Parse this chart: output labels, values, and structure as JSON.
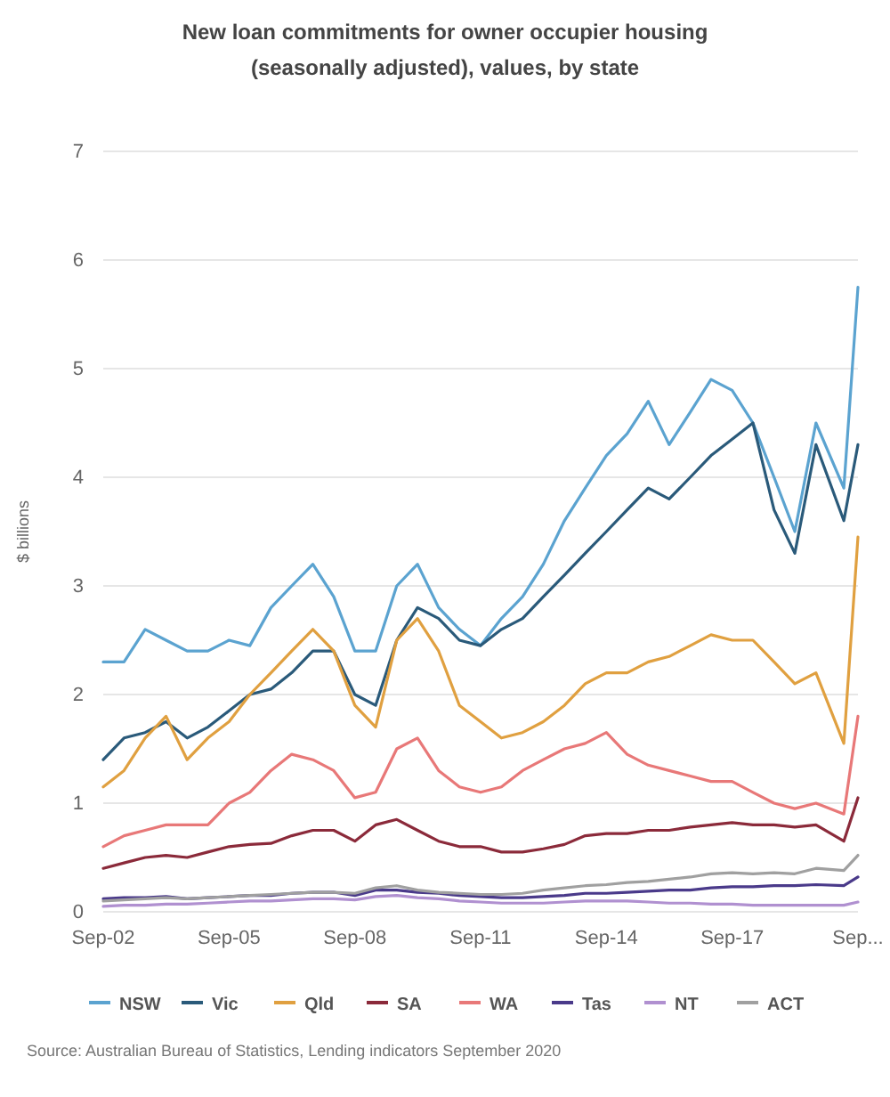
{
  "chart_data": {
    "type": "line",
    "title": "New loan commitments for owner occupier housing (seasonally adjusted), values, by state",
    "ylabel": "$ billions",
    "x": [
      "2002-09",
      "2003-03",
      "2003-09",
      "2004-03",
      "2004-09",
      "2005-03",
      "2005-09",
      "2006-03",
      "2006-09",
      "2007-03",
      "2007-09",
      "2008-03",
      "2008-09",
      "2009-03",
      "2009-09",
      "2010-03",
      "2010-09",
      "2011-03",
      "2011-09",
      "2012-03",
      "2012-09",
      "2013-03",
      "2013-09",
      "2014-03",
      "2014-09",
      "2015-03",
      "2015-09",
      "2016-03",
      "2016-09",
      "2017-03",
      "2017-09",
      "2018-03",
      "2018-09",
      "2019-03",
      "2019-09",
      "2020-05",
      "2020-09"
    ],
    "series": [
      {
        "name": "NSW",
        "color": "#5ba3d0",
        "values": [
          2.3,
          2.3,
          2.6,
          2.5,
          2.4,
          2.4,
          2.5,
          2.45,
          2.8,
          3.0,
          3.2,
          2.9,
          2.4,
          2.4,
          3.0,
          3.2,
          2.8,
          2.6,
          2.45,
          2.7,
          2.9,
          3.2,
          3.6,
          3.9,
          4.2,
          4.4,
          4.7,
          4.3,
          4.6,
          4.9,
          4.8,
          4.5,
          4.0,
          3.5,
          4.5,
          3.9,
          5.75
        ]
      },
      {
        "name": "Vic",
        "color": "#2a5a7a",
        "values": [
          1.4,
          1.6,
          1.65,
          1.75,
          1.6,
          1.7,
          1.85,
          2.0,
          2.05,
          2.2,
          2.4,
          2.4,
          2.0,
          1.9,
          2.5,
          2.8,
          2.7,
          2.5,
          2.45,
          2.6,
          2.7,
          2.9,
          3.1,
          3.3,
          3.5,
          3.7,
          3.9,
          3.8,
          4.0,
          4.2,
          4.35,
          4.5,
          3.7,
          3.3,
          4.3,
          3.6,
          4.3
        ]
      },
      {
        "name": "Qld",
        "color": "#e0a040",
        "values": [
          1.15,
          1.3,
          1.6,
          1.8,
          1.4,
          1.6,
          1.75,
          2.0,
          2.2,
          2.4,
          2.6,
          2.4,
          1.9,
          1.7,
          2.5,
          2.7,
          2.4,
          1.9,
          1.75,
          1.6,
          1.65,
          1.75,
          1.9,
          2.1,
          2.2,
          2.2,
          2.3,
          2.35,
          2.45,
          2.55,
          2.5,
          2.5,
          2.3,
          2.1,
          2.2,
          1.55,
          3.45
        ]
      },
      {
        "name": "SA",
        "color": "#8b2a3a",
        "values": [
          0.4,
          0.45,
          0.5,
          0.52,
          0.5,
          0.55,
          0.6,
          0.62,
          0.63,
          0.7,
          0.75,
          0.75,
          0.65,
          0.8,
          0.85,
          0.75,
          0.65,
          0.6,
          0.6,
          0.55,
          0.55,
          0.58,
          0.62,
          0.7,
          0.72,
          0.72,
          0.75,
          0.75,
          0.78,
          0.8,
          0.82,
          0.8,
          0.8,
          0.78,
          0.8,
          0.65,
          1.05
        ]
      },
      {
        "name": "WA",
        "color": "#e87878",
        "values": [
          0.6,
          0.7,
          0.75,
          0.8,
          0.8,
          0.8,
          1.0,
          1.1,
          1.3,
          1.45,
          1.4,
          1.3,
          1.05,
          1.1,
          1.5,
          1.6,
          1.3,
          1.15,
          1.1,
          1.15,
          1.3,
          1.4,
          1.5,
          1.55,
          1.65,
          1.45,
          1.35,
          1.3,
          1.25,
          1.2,
          1.2,
          1.1,
          1.0,
          0.95,
          1.0,
          0.9,
          1.8
        ]
      },
      {
        "name": "Tas",
        "color": "#4a3a8a",
        "values": [
          0.12,
          0.13,
          0.13,
          0.14,
          0.12,
          0.13,
          0.14,
          0.15,
          0.15,
          0.17,
          0.18,
          0.18,
          0.15,
          0.2,
          0.2,
          0.18,
          0.17,
          0.15,
          0.14,
          0.13,
          0.13,
          0.14,
          0.15,
          0.17,
          0.17,
          0.18,
          0.19,
          0.2,
          0.2,
          0.22,
          0.23,
          0.23,
          0.24,
          0.24,
          0.25,
          0.24,
          0.32
        ]
      },
      {
        "name": "NT",
        "color": "#b090d0",
        "values": [
          0.05,
          0.06,
          0.06,
          0.07,
          0.07,
          0.08,
          0.09,
          0.1,
          0.1,
          0.11,
          0.12,
          0.12,
          0.11,
          0.14,
          0.15,
          0.13,
          0.12,
          0.1,
          0.09,
          0.08,
          0.08,
          0.08,
          0.09,
          0.1,
          0.1,
          0.1,
          0.09,
          0.08,
          0.08,
          0.07,
          0.07,
          0.06,
          0.06,
          0.06,
          0.06,
          0.06,
          0.09
        ]
      },
      {
        "name": "ACT",
        "color": "#a0a0a0",
        "values": [
          0.1,
          0.11,
          0.12,
          0.13,
          0.12,
          0.13,
          0.14,
          0.15,
          0.16,
          0.17,
          0.18,
          0.18,
          0.17,
          0.22,
          0.24,
          0.2,
          0.18,
          0.17,
          0.16,
          0.16,
          0.17,
          0.2,
          0.22,
          0.24,
          0.25,
          0.27,
          0.28,
          0.3,
          0.32,
          0.35,
          0.36,
          0.35,
          0.36,
          0.35,
          0.4,
          0.38,
          0.52
        ]
      }
    ],
    "xlim": [
      "2002-09",
      "2020-09"
    ],
    "xticks": [
      {
        "value": "2002-09",
        "label": "Sep-02"
      },
      {
        "value": "2005-09",
        "label": "Sep-05"
      },
      {
        "value": "2008-09",
        "label": "Sep-08"
      },
      {
        "value": "2011-09",
        "label": "Sep-11"
      },
      {
        "value": "2014-09",
        "label": "Sep-14"
      },
      {
        "value": "2017-09",
        "label": "Sep-17"
      },
      {
        "value": "2020-09",
        "label": "Sep..."
      }
    ],
    "ylim": [
      0,
      7
    ],
    "yticks": [
      0,
      1,
      2,
      3,
      4,
      5,
      6,
      7
    ],
    "grid": "y",
    "legend": "bottom",
    "line_style": "solid",
    "marker": "none",
    "annotations": [
      "Source: Australian Bureau of Statistics, Lending indicators September 2020"
    ]
  }
}
